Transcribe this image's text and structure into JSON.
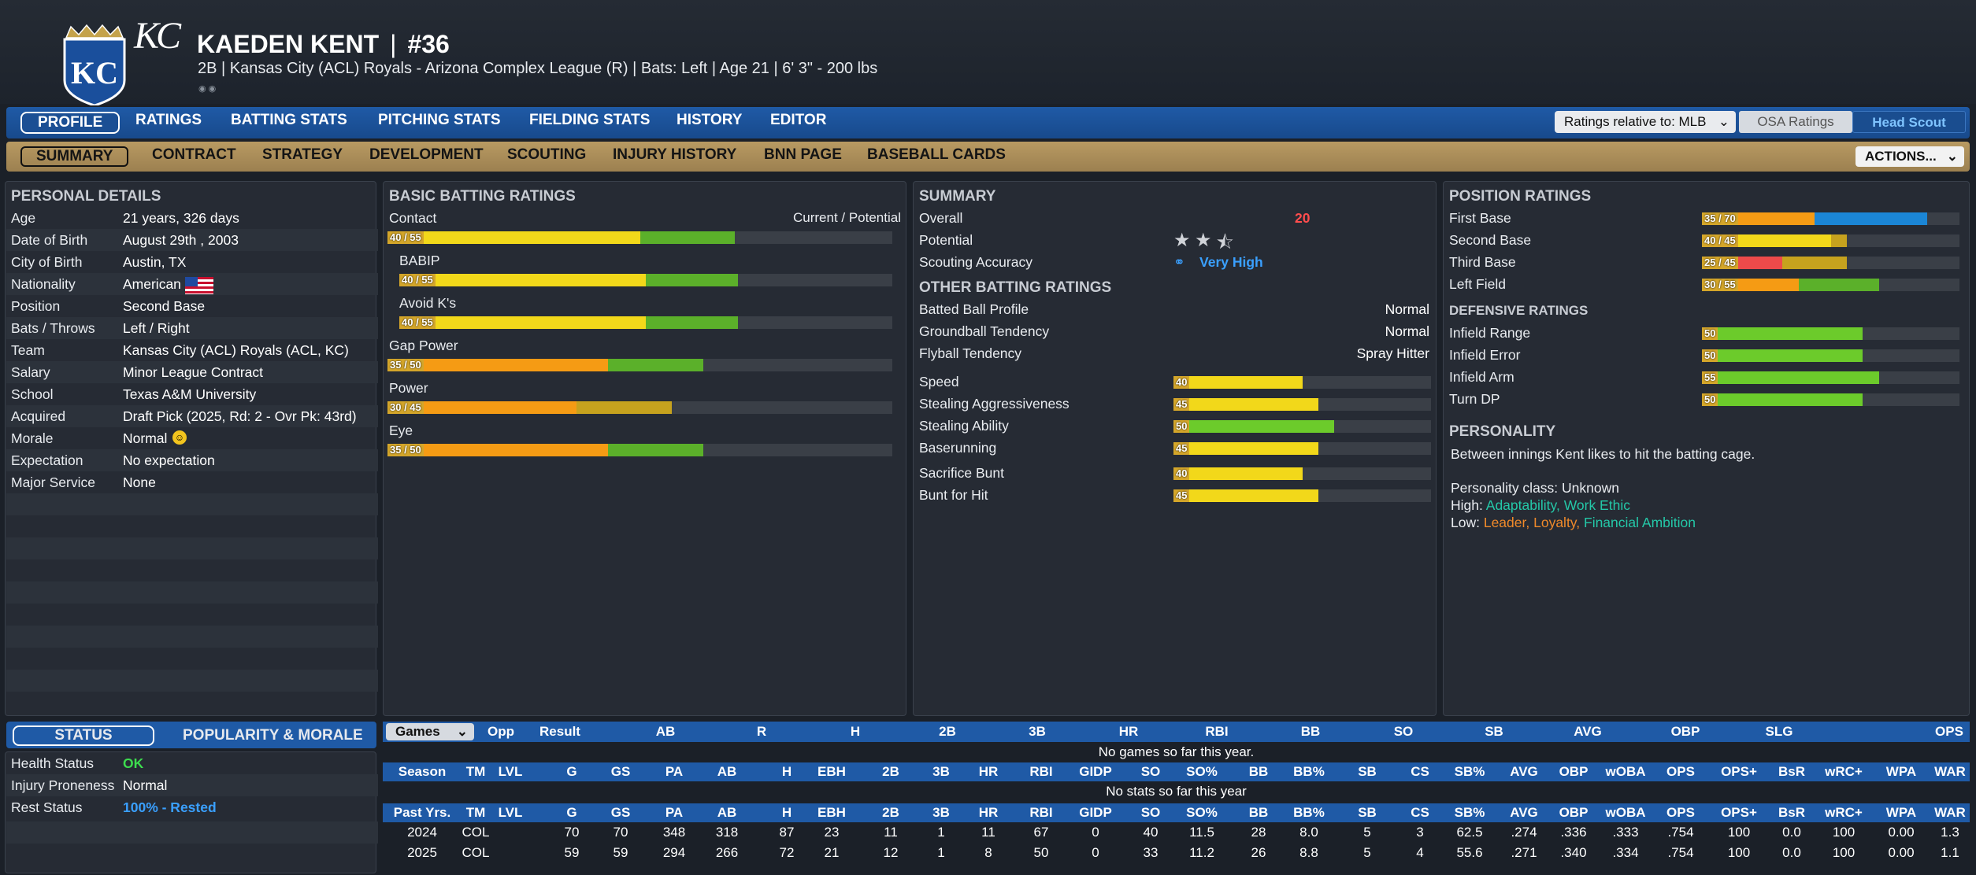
{
  "player": {
    "name": "KAEDEN KENT",
    "number": "#36",
    "subtitle": "2B | Kansas City (ACL) Royals - Arizona Complex League (R)  |  Bats: Left  |  Age 21  |  6' 3\" - 200 lbs",
    "logo_text": "KC",
    "script_text": "KC"
  },
  "nav": {
    "tabs": [
      "PROFILE",
      "RATINGS",
      "BATTING STATS",
      "PITCHING STATS",
      "FIELDING STATS",
      "HISTORY",
      "EDITOR"
    ],
    "ratings_relative": "Ratings relative to: MLB",
    "osa": "OSA Ratings",
    "head_scout": "Head Scout"
  },
  "subnav": {
    "tabs": [
      "SUMMARY",
      "CONTRACT",
      "STRATEGY",
      "DEVELOPMENT",
      "SCOUTING",
      "INJURY HISTORY",
      "BNN PAGE",
      "BASEBALL CARDS"
    ],
    "actions": "ACTIONS..."
  },
  "personal": {
    "title": "PERSONAL DETAILS",
    "rows": [
      {
        "label": "Age",
        "value": "21 years, 326 days"
      },
      {
        "label": "Date of Birth",
        "value": "August 29th , 2003"
      },
      {
        "label": "City of Birth",
        "value": "Austin, TX"
      },
      {
        "label": "Nationality",
        "value": "American"
      },
      {
        "label": "Position",
        "value": "Second Base"
      },
      {
        "label": "Bats / Throws",
        "value": "Left / Right"
      },
      {
        "label": "Team",
        "value": "Kansas City (ACL) Royals (ACL, KC)"
      },
      {
        "label": "Salary",
        "value": "Minor League Contract"
      },
      {
        "label": "School",
        "value": "Texas A&M University"
      },
      {
        "label": "Acquired",
        "value": "Draft Pick (2025, Rd: 2 - Ovr Pk: 43rd)"
      },
      {
        "label": "Morale",
        "value": "Normal"
      },
      {
        "label": "Expectation",
        "value": "No expectation"
      },
      {
        "label": "Major Service",
        "value": "None"
      }
    ]
  },
  "batting": {
    "title": "BASIC BATTING RATINGS",
    "header_right": "Current / Potential",
    "rows": [
      {
        "label": "Contact",
        "badge": "40 / 55",
        "current": 40,
        "potential": 55
      },
      {
        "label": "BABIP",
        "badge": "40 / 55",
        "current": 40,
        "potential": 55
      },
      {
        "label": "Avoid K's",
        "badge": "40 / 55",
        "current": 40,
        "potential": 55
      },
      {
        "label": "Gap Power",
        "badge": "35 / 50",
        "current": 35,
        "potential": 50
      },
      {
        "label": "Power",
        "badge": "30 / 45",
        "current": 30,
        "potential": 45
      },
      {
        "label": "Eye",
        "badge": "35 / 50",
        "current": 35,
        "potential": 50
      }
    ]
  },
  "summary": {
    "title": "SUMMARY",
    "overall_label": "Overall",
    "overall_value": "20",
    "potential_label": "Potential",
    "potential_stars": 2.5,
    "accuracy_label": "Scouting Accuracy",
    "accuracy_value": "Very High",
    "other_title": "OTHER BATTING RATINGS",
    "other_rows": [
      {
        "label": "Batted Ball Profile",
        "value": "Normal"
      },
      {
        "label": "Groundball Tendency",
        "value": "Normal"
      },
      {
        "label": "Flyball Tendency",
        "value": "Spray Hitter"
      }
    ],
    "run_rows": [
      {
        "label": "Speed",
        "value": 40
      },
      {
        "label": "Stealing Aggressiveness",
        "value": 45
      },
      {
        "label": "Stealing Ability",
        "value": 50
      },
      {
        "label": "Baserunning",
        "value": 45
      },
      {
        "label": "Sacrifice Bunt",
        "value": 40
      },
      {
        "label": "Bunt for Hit",
        "value": 45
      }
    ]
  },
  "position": {
    "title": "POSITION RATINGS",
    "rows": [
      {
        "label": "First Base",
        "badge": "35 / 70",
        "current": 35,
        "potential": 70
      },
      {
        "label": "Second Base",
        "badge": "40 / 45",
        "current": 40,
        "potential": 45
      },
      {
        "label": "Third Base",
        "badge": "25 / 45",
        "current": 25,
        "potential": 45
      },
      {
        "label": "Left Field",
        "badge": "30 / 55",
        "current": 30,
        "potential": 55
      }
    ],
    "def_title": "DEFENSIVE RATINGS",
    "def_rows": [
      {
        "label": "Infield Range",
        "value": 50
      },
      {
        "label": "Infield Error",
        "value": 50
      },
      {
        "label": "Infield Arm",
        "value": 55
      },
      {
        "label": "Turn DP",
        "value": 50
      }
    ],
    "pers_title": "PERSONALITY",
    "pers_text": "Between innings Kent likes to hit the batting cage.",
    "pers_class": "Personality class: Unknown",
    "high_label": "High:",
    "high_1": "Adaptability,",
    "high_2": "Work Ethic",
    "low_label": "Low:",
    "low_1": "Leader,",
    "low_2": "Loyalty,",
    "low_3": "Financial Ambition"
  },
  "status": {
    "tab_status": "STATUS",
    "tab_pop": "POPULARITY & MORALE",
    "rows": [
      {
        "label": "Health Status",
        "value": "OK"
      },
      {
        "label": "Injury Proneness",
        "value": "Normal"
      },
      {
        "label": "Rest Status",
        "value": "100% - Rested"
      }
    ]
  },
  "games": {
    "select": "Games",
    "headers": [
      "Opp",
      "Result",
      "AB",
      "R",
      "H",
      "2B",
      "3B",
      "HR",
      "RBI",
      "BB",
      "SO",
      "SB",
      "AVG",
      "OBP",
      "SLG",
      "OPS"
    ],
    "empty": "No games so far this year."
  },
  "season": {
    "headers": [
      "Season",
      "TM",
      "LVL",
      "G",
      "GS",
      "PA",
      "AB",
      "H",
      "EBH",
      "2B",
      "3B",
      "HR",
      "RBI",
      "GIDP",
      "SO",
      "SO%",
      "BB",
      "BB%",
      "SB",
      "CS",
      "SB%",
      "AVG",
      "OBP",
      "wOBA",
      "OPS",
      "OPS+",
      "BsR",
      "wRC+",
      "WPA",
      "WAR"
    ],
    "empty": "No stats so far this year"
  },
  "past": {
    "headers": [
      "Past Yrs.",
      "TM",
      "LVL",
      "G",
      "GS",
      "PA",
      "AB",
      "H",
      "EBH",
      "2B",
      "3B",
      "HR",
      "RBI",
      "GIDP",
      "SO",
      "SO%",
      "BB",
      "BB%",
      "SB",
      "CS",
      "SB%",
      "AVG",
      "OBP",
      "wOBA",
      "OPS",
      "OPS+",
      "BsR",
      "wRC+",
      "WPA",
      "WAR"
    ],
    "rows": [
      [
        "2024",
        "COL",
        "",
        "70",
        "70",
        "348",
        "318",
        "87",
        "23",
        "11",
        "1",
        "11",
        "67",
        "0",
        "40",
        "11.5",
        "28",
        "8.0",
        "5",
        "3",
        "62.5",
        ".274",
        ".336",
        ".333",
        ".754",
        "100",
        "0.0",
        "100",
        "0.00",
        "1.3"
      ],
      [
        "2025",
        "COL",
        "",
        "59",
        "59",
        "294",
        "266",
        "72",
        "21",
        "12",
        "1",
        "8",
        "50",
        "0",
        "33",
        "11.2",
        "26",
        "8.8",
        "5",
        "4",
        "55.6",
        ".271",
        ".340",
        ".334",
        ".754",
        "100",
        "0.0",
        "100",
        "0.00",
        "1.1"
      ]
    ]
  },
  "colors": {
    "overall": "#ff4d4d",
    "accuracy": "#3aa0ff",
    "ok": "#3ddc4e",
    "rest": "#3aa0ff",
    "high": "#24c8a8",
    "low": "#f08a2a"
  }
}
